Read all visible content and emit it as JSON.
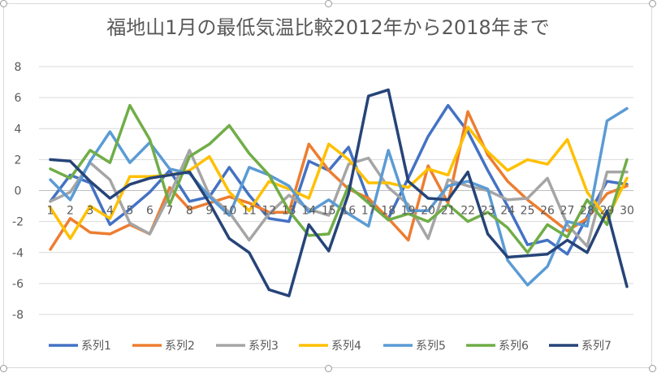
{
  "chart_data": {
    "type": "line",
    "title": "福地山1月の最低気温比較2012年から2018年まで",
    "xlabel": "",
    "ylabel": "",
    "x": [
      1,
      2,
      3,
      4,
      5,
      6,
      7,
      8,
      9,
      10,
      11,
      12,
      13,
      14,
      15,
      16,
      17,
      18,
      19,
      20,
      21,
      22,
      23,
      24,
      25,
      26,
      27,
      28,
      29,
      30
    ],
    "ylim": [
      -8,
      8
    ],
    "yticks": [
      -8,
      -6,
      -4,
      -2,
      0,
      2,
      4,
      6,
      8
    ],
    "grid": true,
    "legend_position": "bottom",
    "series": [
      {
        "name": "系列1",
        "color": "#4472C4",
        "values": [
          -0.7,
          1.0,
          0.5,
          -2.2,
          -1.2,
          -0.1,
          1.3,
          -0.7,
          -0.4,
          1.5,
          -0.3,
          -1.8,
          -2.0,
          1.9,
          1.3,
          2.8,
          -0.6,
          -1.8,
          0.8,
          3.5,
          5.5,
          3.8,
          1.3,
          -1.0,
          -3.5,
          -3.2,
          -4.1,
          -1.7,
          0.6,
          0.4
        ]
      },
      {
        "name": "系列2",
        "color": "#ED7D31",
        "values": [
          -3.8,
          -1.8,
          -2.7,
          -2.8,
          -2.2,
          -2.8,
          0.2,
          -1.2,
          -0.8,
          -0.4,
          -0.8,
          -1.4,
          -1.4,
          3.0,
          1.3,
          0.1,
          -0.5,
          -1.8,
          -3.2,
          1.6,
          -0.8,
          5.1,
          2.3,
          0.6,
          -0.6,
          -1.6,
          -2.6,
          -1.8,
          -0.2,
          0.3
        ]
      },
      {
        "name": "系列3",
        "color": "#A5A5A5",
        "values": [
          -0.7,
          -0.1,
          1.8,
          0.7,
          -2.1,
          -2.8,
          -0.3,
          2.6,
          -0.3,
          -1.4,
          -3.2,
          -1.5,
          -0.3,
          -1.2,
          -1.6,
          1.7,
          2.1,
          0.2,
          -0.9,
          -3.1,
          0.7,
          0.3,
          0.0,
          -0.6,
          -0.5,
          0.8,
          -2.2,
          -3.6,
          1.2,
          1.2
        ]
      },
      {
        "name": "系列4",
        "color": "#FFC000",
        "values": [
          -1.1,
          -3.1,
          -1.0,
          -1.8,
          0.9,
          0.9,
          1.0,
          1.3,
          2.2,
          -0.1,
          -1.3,
          0.6,
          0.1,
          -0.5,
          3.0,
          2.0,
          0.5,
          0.5,
          0.2,
          1.4,
          1.0,
          4.1,
          2.5,
          1.3,
          2.0,
          1.7,
          3.3,
          -0.1,
          -1.8,
          0.8
        ]
      },
      {
        "name": "系列5",
        "color": "#5B9BD5",
        "values": [
          0.7,
          -0.6,
          1.9,
          3.8,
          1.8,
          3.1,
          1.4,
          1.1,
          -0.4,
          -1.6,
          1.5,
          1.0,
          0.3,
          -1.4,
          -0.6,
          -1.5,
          -2.3,
          2.6,
          -1.3,
          -1.3,
          0.3,
          0.6,
          0.1,
          -4.5,
          -6.1,
          -4.9,
          -2.0,
          -2.3,
          4.5,
          5.3
        ]
      },
      {
        "name": "系列6",
        "color": "#70AD47",
        "values": [
          1.4,
          0.8,
          2.6,
          1.8,
          5.5,
          3.3,
          -0.9,
          2.2,
          3.0,
          4.2,
          2.4,
          1.0,
          -1.3,
          -2.9,
          -2.8,
          0.3,
          -0.8,
          -1.9,
          -1.5,
          -2.0,
          -0.9,
          -2.0,
          -1.4,
          -2.4,
          -4.0,
          -2.2,
          -3.0,
          -0.6,
          -2.2,
          2.0
        ]
      },
      {
        "name": "系列7",
        "color": "#264478",
        "values": [
          2.0,
          1.9,
          0.6,
          -0.5,
          0.4,
          0.8,
          1.0,
          1.2,
          -0.8,
          -3.1,
          -4.0,
          -6.4,
          -6.8,
          -2.2,
          -3.9,
          -0.2,
          6.1,
          6.5,
          0.6,
          -0.5,
          -0.6,
          1.2,
          -2.8,
          -4.3,
          -4.2,
          -4.1,
          -3.2,
          -4.0,
          -1.3,
          -6.2
        ]
      }
    ]
  }
}
